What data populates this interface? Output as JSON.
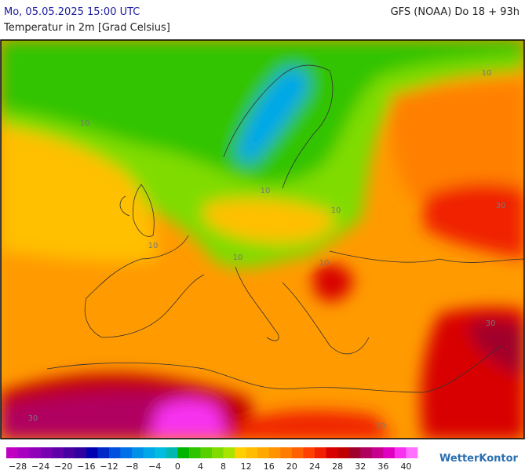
{
  "header": {
    "valid_time": "Mo, 05.05.2025 15:00 UTC",
    "model_run": "GFS (NOAA) Do 18 + 93h",
    "parameter": "Temperatur in 2m [Grad Celsius]"
  },
  "contour_labels": [
    "10",
    "10",
    "10",
    "10",
    "10",
    "10",
    "10",
    "30",
    "30",
    "30",
    "30"
  ],
  "colorbar": {
    "labels": [
      "−28",
      "−24",
      "−20",
      "−16",
      "−12",
      "−8",
      "−4",
      "0",
      "4",
      "8",
      "12",
      "16",
      "20",
      "24",
      "28",
      "32",
      "36",
      "40"
    ],
    "colors": [
      "#c000c0",
      "#a800c0",
      "#9000b8",
      "#7800b0",
      "#6000a8",
      "#4800a0",
      "#3000a0",
      "#0000b0",
      "#0028c8",
      "#0050e0",
      "#0070e8",
      "#0090e8",
      "#00a8e8",
      "#00bce0",
      "#00b8b0",
      "#00b400",
      "#30c400",
      "#58d000",
      "#80dc00",
      "#a8e400",
      "#ffd000",
      "#ffbc00",
      "#ffa800",
      "#ff9400",
      "#ff7c00",
      "#ff6000",
      "#ff4000",
      "#f02000",
      "#d80000",
      "#c00000",
      "#a0002c",
      "#b00060",
      "#c80090",
      "#e000c0",
      "#f830f0",
      "#ff70ff"
    ]
  },
  "logo": "WetterKontor"
}
